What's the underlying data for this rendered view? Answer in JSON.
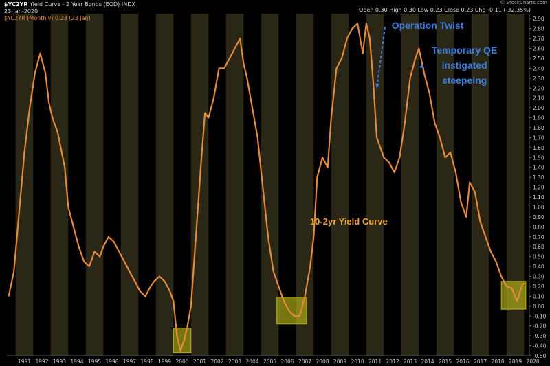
{
  "header": {
    "symbol": "$YC2YR",
    "title": "Yield Curve - 2 Year Bonds (EOD)",
    "exchange": "INDX",
    "date": "23-Jan-2020",
    "legend": "$YC2YR (Monthly) 0.23 (23 Jan)",
    "ohlc": "Open 0.30  High 0.30  Low 0.23  Close 0.23  Chg -0.11 (-32.35%)",
    "watermark": "© StockCharts.com"
  },
  "colors": {
    "background": "#000000",
    "band": "#2b2717",
    "price": "#e58a3a",
    "highlight": "#b6b317",
    "annotation_blue": "#3b7ddd",
    "annotation_orange": "#f0a030"
  },
  "chart_data": {
    "type": "line",
    "title": "Yield Curve - 2 Year Bonds (EOD)",
    "xlabel": "",
    "ylabel": "",
    "xlim": [
      1990.5,
      2020.3
    ],
    "ylim": [
      -0.5,
      2.95
    ],
    "xticks": [
      "1991",
      "1992",
      "1993",
      "1994",
      "1995",
      "1996",
      "1997",
      "1998",
      "1999",
      "2000",
      "2001",
      "2002",
      "2003",
      "2004",
      "2005",
      "2006",
      "2007",
      "2008",
      "2009",
      "2010",
      "2011",
      "2012",
      "2013",
      "2014",
      "2015",
      "2016",
      "2017",
      "2018",
      "2019",
      "2020"
    ],
    "yticks": [
      "-0.50",
      "-0.40",
      "-0.30",
      "-0.20",
      "-0.10",
      "0.00",
      "0.10",
      "0.20",
      "0.30",
      "0.40",
      "0.50",
      "0.60",
      "0.70",
      "0.80",
      "0.90",
      "1.00",
      "1.10",
      "1.20",
      "1.30",
      "1.40",
      "1.50",
      "1.60",
      "1.70",
      "1.80",
      "1.90",
      "2.00",
      "2.10",
      "2.20",
      "2.30",
      "2.40",
      "2.50",
      "2.60",
      "2.70",
      "2.80",
      "2.90"
    ],
    "grid": false,
    "series": [
      {
        "name": "$YC2YR",
        "x": [
          1990.6,
          1990.9,
          1991.2,
          1991.5,
          1991.8,
          1992.1,
          1992.4,
          1992.7,
          1992.9,
          1993.1,
          1993.4,
          1993.8,
          1994.0,
          1994.3,
          1994.6,
          1994.9,
          1995.2,
          1995.5,
          1995.8,
          1996.0,
          1996.3,
          1996.6,
          1996.9,
          1997.2,
          1997.5,
          1997.8,
          1998.1,
          1998.4,
          1998.7,
          1998.9,
          1999.2,
          1999.5,
          1999.8,
          2000.0,
          2000.2,
          2000.4,
          2000.6,
          2000.8,
          2001.0,
          2001.2,
          2001.4,
          2001.6,
          2001.8,
          2002.0,
          2002.3,
          2002.6,
          2002.9,
          2003.2,
          2003.5,
          2003.8,
          2004.0,
          2004.2,
          2004.5,
          2004.8,
          2005.1,
          2005.4,
          2005.7,
          2006.0,
          2006.3,
          2006.6,
          2006.9,
          2007.2,
          2007.5,
          2007.8,
          2008.0,
          2008.2,
          2008.5,
          2008.8,
          2009.0,
          2009.3,
          2009.6,
          2009.9,
          2010.2,
          2010.5,
          2010.8,
          2011.0,
          2011.2,
          2011.4,
          2011.6,
          2011.8,
          2012.0,
          2012.3,
          2012.6,
          2012.9,
          2013.2,
          2013.5,
          2013.8,
          2014.0,
          2014.3,
          2014.6,
          2014.9,
          2015.2,
          2015.5,
          2015.8,
          2016.1,
          2016.4,
          2016.7,
          2016.9,
          2017.2,
          2017.5,
          2017.8,
          2018.1,
          2018.4,
          2018.7,
          2019.0,
          2019.3,
          2019.6,
          2019.9,
          2020.05
        ],
        "values": [
          0.1,
          0.35,
          0.95,
          1.55,
          2.0,
          2.35,
          2.55,
          2.35,
          2.05,
          1.9,
          1.75,
          1.4,
          1.0,
          0.8,
          0.6,
          0.45,
          0.4,
          0.55,
          0.5,
          0.6,
          0.7,
          0.65,
          0.55,
          0.45,
          0.35,
          0.25,
          0.15,
          0.1,
          0.2,
          0.25,
          0.3,
          0.25,
          0.15,
          0.05,
          -0.3,
          -0.45,
          -0.35,
          -0.2,
          0.0,
          0.5,
          1.0,
          1.5,
          1.95,
          1.9,
          2.1,
          2.4,
          2.4,
          2.5,
          2.6,
          2.7,
          2.45,
          2.3,
          2.0,
          1.7,
          1.2,
          0.7,
          0.35,
          0.2,
          0.05,
          -0.05,
          -0.1,
          -0.1,
          0.1,
          0.4,
          0.7,
          1.3,
          1.5,
          1.4,
          1.9,
          2.4,
          2.5,
          2.7,
          2.8,
          2.85,
          2.55,
          2.85,
          2.7,
          2.25,
          1.7,
          1.6,
          1.5,
          1.45,
          1.35,
          1.5,
          1.85,
          2.3,
          2.5,
          2.6,
          2.35,
          2.15,
          1.85,
          1.7,
          1.5,
          1.55,
          1.35,
          1.05,
          0.9,
          1.25,
          1.15,
          0.85,
          0.7,
          0.55,
          0.45,
          0.3,
          0.2,
          0.18,
          0.05,
          0.22,
          0.23
        ]
      }
    ],
    "highlights": [
      {
        "x": [
          2000.0,
          2001.0
        ],
        "y": [
          -0.47,
          -0.22
        ]
      },
      {
        "x": [
          2005.9,
          2007.6
        ],
        "y": [
          -0.18,
          0.09
        ]
      },
      {
        "x": [
          2018.7,
          2020.1
        ],
        "y": [
          -0.03,
          0.25
        ]
      }
    ],
    "annotations": [
      {
        "text": "Operation Twist",
        "x": 2014.5,
        "y": 2.83,
        "color": "blue",
        "arrow_to": [
          2011.6,
          2.2
        ]
      },
      {
        "text": "Temporary QE",
        "x": 2016.6,
        "y": 2.58,
        "color": "blue"
      },
      {
        "text": "instigated",
        "x": 2016.6,
        "y": 2.43,
        "color": "blue",
        "arrow_to": [
          2014.3,
          2.4
        ]
      },
      {
        "text": "steepeing",
        "x": 2016.6,
        "y": 2.28,
        "color": "blue"
      },
      {
        "text": "10-2yr Yield Curve",
        "x": 2010.0,
        "y": 0.85,
        "color": "orange"
      }
    ]
  }
}
